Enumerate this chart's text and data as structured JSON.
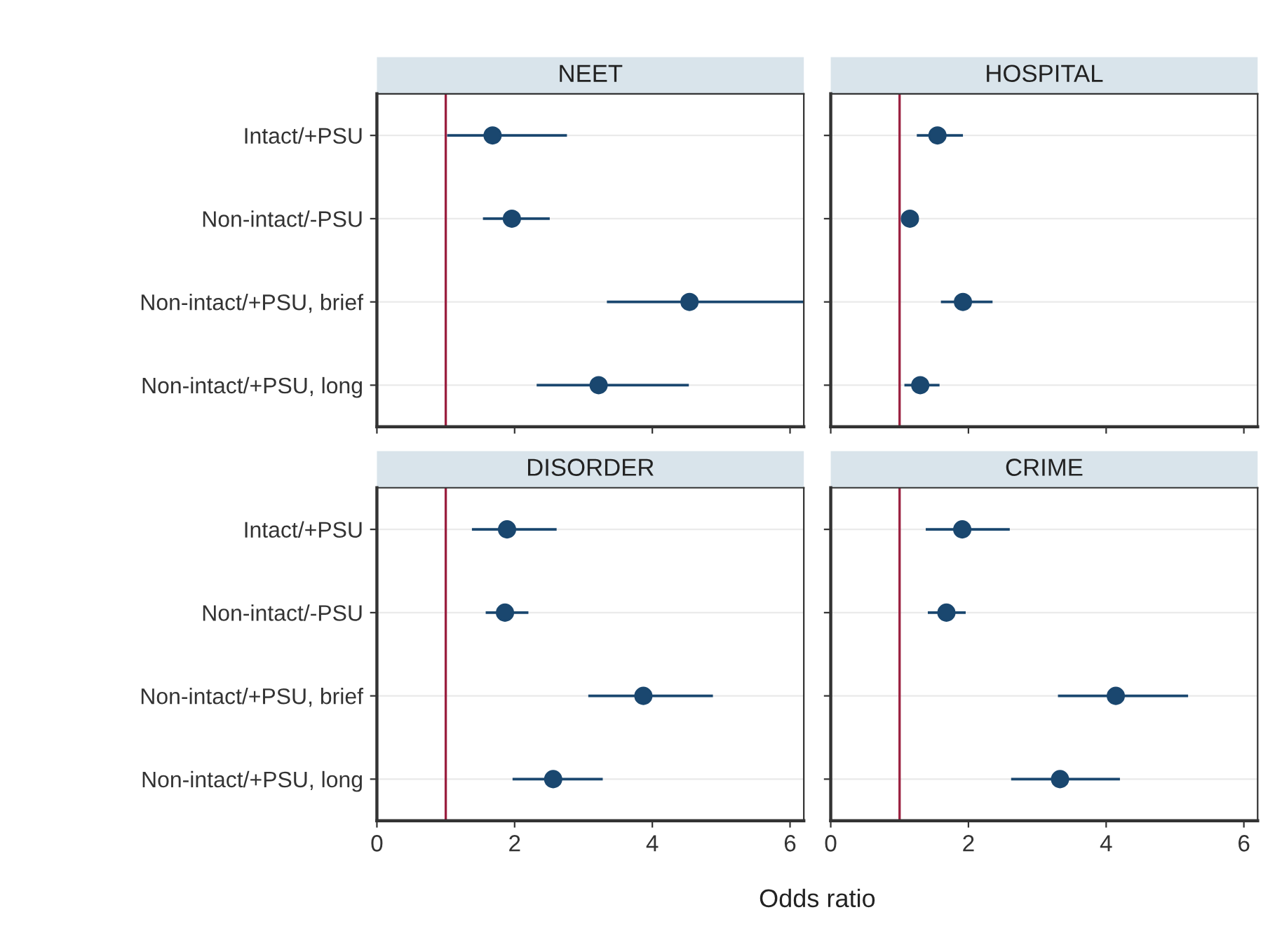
{
  "chart_data": [
    {
      "type": "scatter",
      "title": "NEET",
      "orientation": "horizontal",
      "categories": [
        "Intact/+PSU",
        "Non-intact/-PSU",
        "Non-intact/+PSU, brief",
        "Non-intact/+PSU, long"
      ],
      "xlim": [
        0,
        6.2
      ],
      "xticks": [
        0,
        2,
        4,
        6
      ],
      "tick_labels": "y",
      "grid": "y",
      "marker": "circle",
      "series": [
        {
          "color": "#1a476f",
          "values": [
            1.68,
            1.96,
            4.54,
            3.22
          ],
          "errors": [
            [
              1.02,
              2.76
            ],
            [
              1.54,
              2.51
            ],
            [
              3.34,
              6.2
            ],
            [
              2.32,
              4.53
            ]
          ]
        }
      ],
      "ref_lines": [
        {
          "axis": "x",
          "value": 1,
          "color": "#9b2040"
        }
      ]
    },
    {
      "type": "scatter",
      "title": "HOSPITAL",
      "orientation": "horizontal",
      "categories": [
        null,
        null,
        null,
        null
      ],
      "xlim": [
        0,
        6.2
      ],
      "xticks": [
        0,
        2,
        4,
        6
      ],
      "tick_labels": false,
      "grid": "y",
      "marker": "circle",
      "series": [
        {
          "color": "#1a476f",
          "values": [
            1.55,
            1.15,
            1.92,
            1.3
          ],
          "errors": [
            [
              1.25,
              1.92
            ],
            [
              1.05,
              1.25
            ],
            [
              1.6,
              2.35
            ],
            [
              1.07,
              1.58
            ]
          ]
        }
      ],
      "ref_lines": [
        {
          "axis": "x",
          "value": 1,
          "color": "#9b2040"
        }
      ]
    },
    {
      "type": "scatter",
      "title": "DISORDER",
      "orientation": "horizontal",
      "categories": [
        "Intact/+PSU",
        "Non-intact/-PSU",
        "Non-intact/+PSU, brief",
        "Non-intact/+PSU, long"
      ],
      "xlim": [
        0,
        6.2
      ],
      "xticks": [
        0,
        2,
        4,
        6
      ],
      "xlabel": "Odds ratio",
      "grid": "y",
      "marker": "circle",
      "series": [
        {
          "color": "#1a476f",
          "values": [
            1.89,
            1.86,
            3.87,
            2.56
          ],
          "errors": [
            [
              1.38,
              2.61
            ],
            [
              1.58,
              2.2
            ],
            [
              3.07,
              4.88
            ],
            [
              1.97,
              3.28
            ]
          ]
        }
      ],
      "ref_lines": [
        {
          "axis": "x",
          "value": 1,
          "color": "#9b2040"
        }
      ]
    },
    {
      "type": "scatter",
      "title": "CRIME",
      "orientation": "horizontal",
      "categories": [
        null,
        null,
        null,
        null
      ],
      "xlim": [
        0,
        6.2
      ],
      "xticks": [
        0,
        2,
        4,
        6
      ],
      "tick_labels": "x",
      "grid": "y",
      "marker": "circle",
      "series": [
        {
          "color": "#1a476f",
          "values": [
            1.91,
            1.68,
            4.14,
            3.33
          ],
          "errors": [
            [
              1.38,
              2.6
            ],
            [
              1.41,
              1.96
            ],
            [
              3.3,
              5.19
            ],
            [
              2.62,
              4.2
            ]
          ]
        }
      ],
      "ref_lines": [
        {
          "axis": "x",
          "value": 1,
          "color": "#9b2040"
        }
      ]
    }
  ]
}
